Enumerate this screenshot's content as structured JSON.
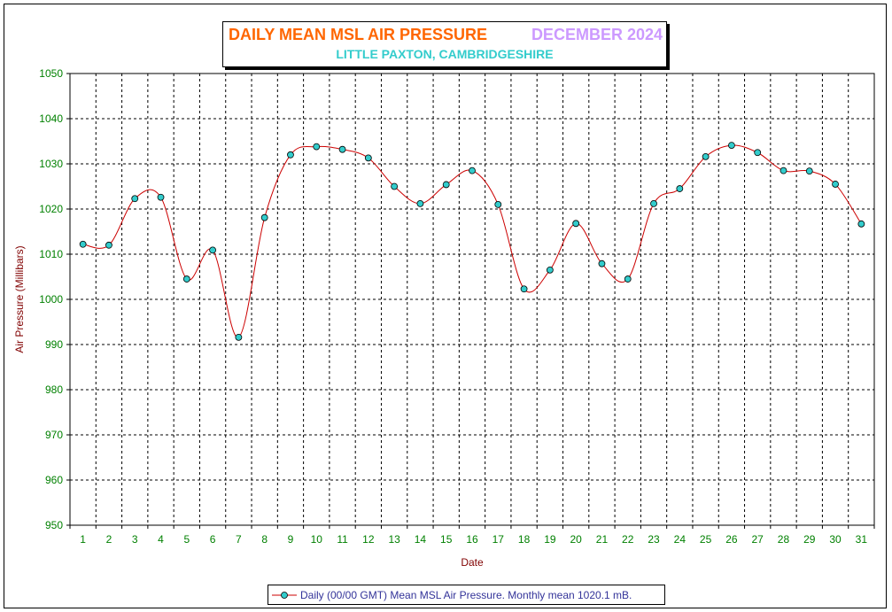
{
  "chart_data": {
    "type": "line",
    "title": "DAILY MEAN MSL AIR PRESSURE",
    "title_period": "DECEMBER 2024",
    "subtitle": "LITTLE PAXTON, CAMBRIDGESHIRE",
    "xlabel": "Date",
    "ylabel": "Air Pressure (Millibars)",
    "ylim": [
      950,
      1050
    ],
    "yticks": [
      950,
      960,
      970,
      980,
      990,
      1000,
      1010,
      1020,
      1030,
      1040,
      1050
    ],
    "x": [
      1,
      2,
      3,
      4,
      5,
      6,
      7,
      8,
      9,
      10,
      11,
      12,
      13,
      14,
      15,
      16,
      17,
      18,
      19,
      20,
      21,
      22,
      23,
      24,
      25,
      26,
      27,
      28,
      29,
      30,
      31
    ],
    "grid": true,
    "legend_position": "bottom-center",
    "series": [
      {
        "name": "Daily (00/00 GMT) Mean MSL Air Pressure. Monthly mean 1020.1 mB.",
        "values": [
          1012.2,
          1012.0,
          1022.3,
          1022.6,
          1004.5,
          1010.9,
          991.6,
          1018.1,
          1032.0,
          1033.8,
          1033.2,
          1031.3,
          1025.0,
          1021.2,
          1025.4,
          1028.5,
          1021.0,
          1002.3,
          1006.5,
          1016.8,
          1007.9,
          1004.5,
          1021.2,
          1024.5,
          1031.6,
          1034.1,
          1032.5,
          1028.5,
          1028.4,
          1025.5,
          1016.7
        ],
        "line_color": "#cc0000",
        "marker_color": "#33cccc"
      }
    ],
    "colors": {
      "title": "#ff6600",
      "title_period": "#cc99ff",
      "subtitle": "#33cccc",
      "tick_labels": "#008000",
      "axis_titles": "#800000",
      "legend_text": "#333399"
    }
  }
}
